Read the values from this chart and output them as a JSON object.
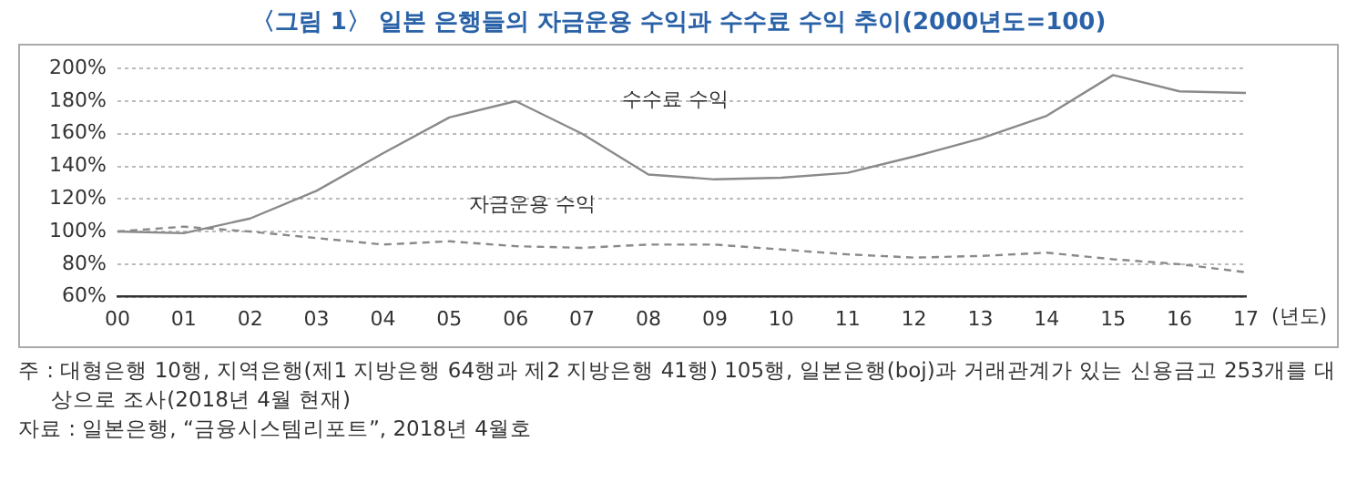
{
  "chart_data": {
    "type": "line",
    "title": "〈그림 1〉 일본 은행들의 자금운용 수익과 수수료 수익 추이(2000년도=100)",
    "xlabel": "(년도)",
    "categories": [
      "00",
      "01",
      "02",
      "03",
      "04",
      "05",
      "06",
      "07",
      "08",
      "09",
      "10",
      "11",
      "12",
      "13",
      "14",
      "15",
      "16",
      "17"
    ],
    "series": [
      {
        "name": "수수료 수익",
        "color": "#8a8a8a",
        "line_style": "solid",
        "values": [
          100,
          99,
          108,
          125,
          148,
          170,
          180,
          160,
          135,
          132,
          133,
          136,
          146,
          157,
          171,
          196,
          186,
          185
        ]
      },
      {
        "name": "자금운용 수익",
        "color": "#8a8a8a",
        "line_style": "dashed",
        "values": [
          100,
          103,
          100,
          96,
          92,
          94,
          91,
          90,
          92,
          92,
          89,
          86,
          84,
          85,
          87,
          83,
          80,
          75
        ]
      }
    ],
    "ylim": [
      60,
      200
    ],
    "yticks": [
      {
        "value": 60,
        "label": "60%"
      },
      {
        "value": 80,
        "label": "80%"
      },
      {
        "value": 100,
        "label": "100%"
      },
      {
        "value": 120,
        "label": "120%"
      },
      {
        "value": 140,
        "label": "140%"
      },
      {
        "value": 160,
        "label": "160%"
      },
      {
        "value": 180,
        "label": "180%"
      },
      {
        "value": 200,
        "label": "200%"
      }
    ],
    "grid": "y",
    "legend": false,
    "marker": "none",
    "annotations": [
      "주 : 대형은행 10행, 지역은행(제1 지방은행 64행과 제2 지방은행 41행) 105행, 일본은행(boj)과 거래관계가 있는 신용금고 253개를 대상으로 조사(2018년 4월 현재)",
      "자료 : 일본은행, “금융시스템리포트”, 2018년 4월호"
    ]
  }
}
